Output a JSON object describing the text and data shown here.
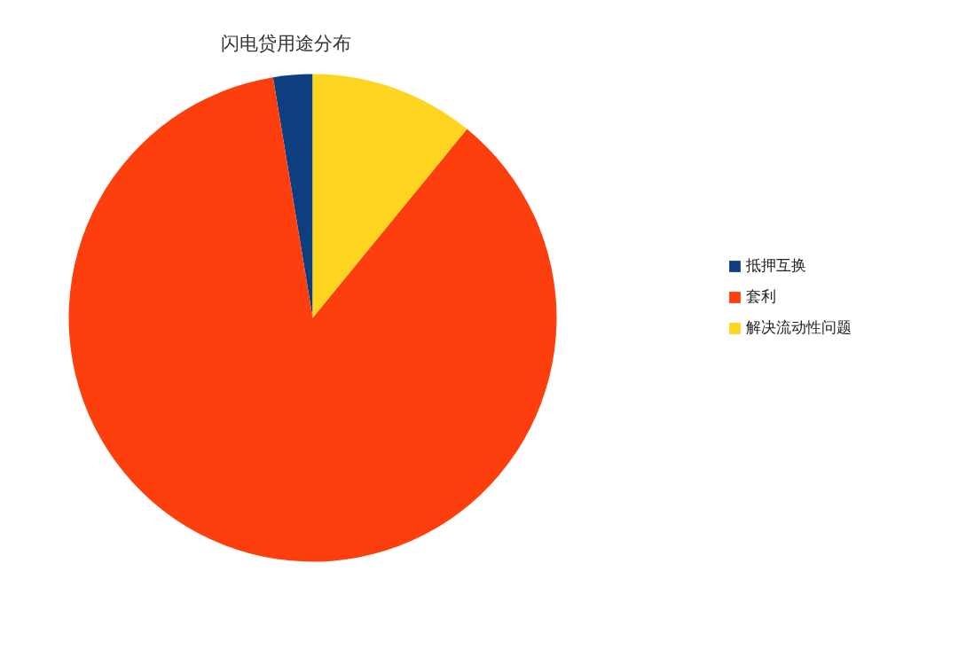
{
  "chart_data": {
    "type": "pie",
    "title": "闪电贷用途分布",
    "categories": [
      "抵押互换",
      "套利",
      "解决流动性问题"
    ],
    "values": [
      2.6,
      86.5,
      10.9
    ],
    "colors": [
      "#0d3f80",
      "#fc3f0c",
      "#fdd520"
    ],
    "legend": "right"
  }
}
